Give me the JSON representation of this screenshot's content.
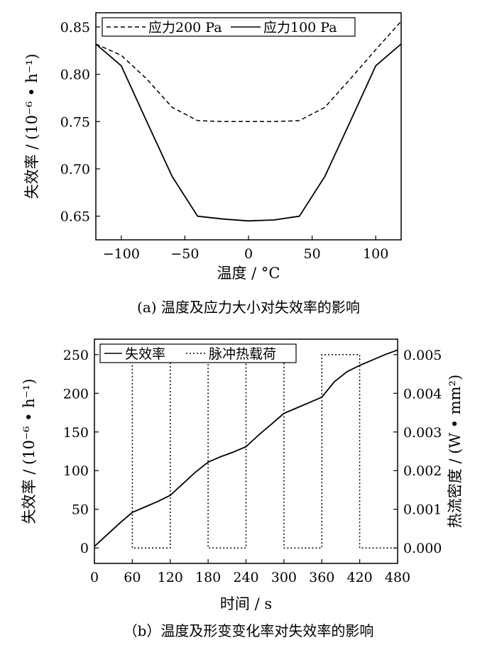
{
  "chart_data": [
    {
      "type": "line",
      "title": "",
      "caption": "(a) 温度及应力大小对失效率的影响",
      "xlabel": "温度 / °C",
      "ylabel": "失效率 / (10⁻⁶ • h⁻¹)",
      "xlim": [
        -120,
        120
      ],
      "ylim": [
        0.625,
        0.865
      ],
      "xticks": [
        -100,
        -50,
        0,
        50,
        100
      ],
      "xtick_labels": [
        "−100",
        "−50",
        "0",
        "50",
        "100"
      ],
      "yticks": [
        0.65,
        0.7,
        0.75,
        0.8,
        0.85
      ],
      "ytick_labels": [
        "0.65",
        "0.70",
        "0.75",
        "0.80",
        "0.85"
      ],
      "grid": false,
      "legend": "top",
      "series": [
        {
          "name": "应力200 Pa",
          "style": "dashed",
          "x": [
            -120,
            -100,
            -80,
            -60,
            -40,
            -20,
            0,
            20,
            40,
            60,
            80,
            100,
            120
          ],
          "y": [
            0.832,
            0.82,
            0.795,
            0.765,
            0.751,
            0.75,
            0.75,
            0.75,
            0.751,
            0.765,
            0.795,
            0.826,
            0.856
          ]
        },
        {
          "name": "应力100 Pa",
          "style": "solid",
          "x": [
            -120,
            -100,
            -80,
            -60,
            -40,
            -20,
            0,
            20,
            40,
            60,
            80,
            100,
            120
          ],
          "y": [
            0.832,
            0.809,
            0.75,
            0.692,
            0.65,
            0.647,
            0.645,
            0.646,
            0.65,
            0.692,
            0.75,
            0.809,
            0.832
          ]
        }
      ]
    },
    {
      "type": "line",
      "title": "",
      "caption": "（b）温度及形变变化率对失效率的影响",
      "xlabel": "时间 / s",
      "ylabel": "失效率 / (10⁻⁶ • h⁻¹)",
      "y2label": "热流密度 / (W • mm²)",
      "xlim": [
        0,
        480
      ],
      "ylim": [
        -20,
        270
      ],
      "y2lim": [
        -0.0004,
        0.0054
      ],
      "xticks": [
        0,
        60,
        120,
        180,
        240,
        300,
        360,
        420,
        480
      ],
      "xtick_labels": [
        "0",
        "60",
        "120",
        "180",
        "240",
        "300",
        "360",
        "420",
        "480"
      ],
      "yticks": [
        0,
        50,
        100,
        150,
        200,
        250
      ],
      "ytick_labels": [
        "0",
        "50",
        "100",
        "150",
        "200",
        "250"
      ],
      "y2ticks": [
        0,
        0.001,
        0.002,
        0.003,
        0.004,
        0.005
      ],
      "y2tick_labels": [
        "0.000",
        "0.001",
        "0.002",
        "0.003",
        "0.004",
        "0.005"
      ],
      "grid": false,
      "legend": "top-left",
      "series": [
        {
          "name": "失效率",
          "style": "solid",
          "axis": "left",
          "x": [
            0,
            20,
            40,
            60,
            80,
            100,
            120,
            140,
            160,
            180,
            200,
            220,
            240,
            260,
            280,
            300,
            320,
            340,
            360,
            380,
            400,
            420,
            440,
            460,
            480
          ],
          "y": [
            2,
            17,
            32,
            46,
            53,
            60,
            68,
            83,
            98,
            111,
            118,
            124,
            131,
            146,
            160,
            174,
            181,
            188,
            195,
            215,
            228,
            236,
            243,
            250,
            256
          ]
        },
        {
          "name": "脉冲热载荷",
          "style": "dotted",
          "axis": "right",
          "x": [
            60,
            60,
            120,
            120,
            180,
            180,
            240,
            240,
            300,
            300,
            360,
            360,
            420,
            420,
            480
          ],
          "y": [
            0.005,
            0,
            0,
            0.005,
            0.005,
            0,
            0,
            0.005,
            0.005,
            0,
            0,
            0.005,
            0.005,
            0,
            0
          ]
        }
      ]
    }
  ]
}
